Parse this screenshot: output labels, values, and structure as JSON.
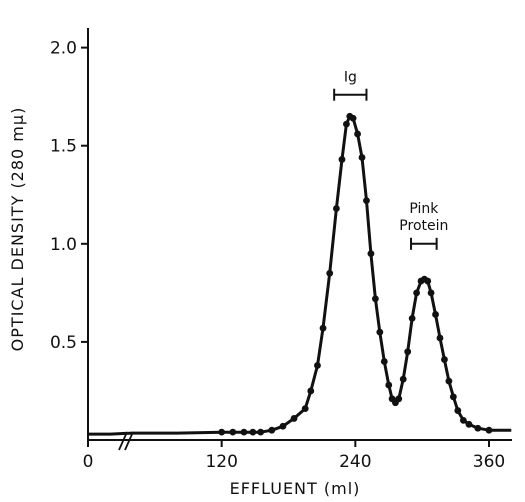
{
  "chart_data": {
    "type": "line",
    "title": "",
    "xlabel": "EFFLUENT (ml)",
    "ylabel": "OPTICAL DENSITY (280 mμ)",
    "xlim": [
      0,
      380
    ],
    "ylim": [
      0,
      2.1
    ],
    "x_ticks": [
      "0",
      "120",
      "240",
      "360"
    ],
    "y_ticks": [
      "0.5",
      "1.0",
      "1.5",
      "2.0"
    ],
    "axis_break": "x",
    "grid": false,
    "legend": "none",
    "series": [
      {
        "points": [
          [
            0,
            0.03
          ],
          [
            20,
            0.03
          ],
          [
            40,
            0.035
          ],
          [
            60,
            0.035
          ],
          [
            80,
            0.035
          ],
          [
            120,
            0.04
          ],
          [
            130,
            0.04
          ],
          [
            140,
            0.04
          ],
          [
            148,
            0.04
          ],
          [
            155,
            0.04
          ],
          [
            165,
            0.05
          ],
          [
            175,
            0.07
          ],
          [
            185,
            0.11
          ],
          [
            195,
            0.16
          ],
          [
            200,
            0.25
          ],
          [
            206,
            0.38
          ],
          [
            211,
            0.57
          ],
          [
            217,
            0.85
          ],
          [
            223,
            1.18
          ],
          [
            228,
            1.43
          ],
          [
            232,
            1.61
          ],
          [
            235,
            1.65
          ],
          [
            238,
            1.64
          ],
          [
            242,
            1.56
          ],
          [
            246,
            1.44
          ],
          [
            250,
            1.22
          ],
          [
            254,
            0.95
          ],
          [
            258,
            0.72
          ],
          [
            262,
            0.55
          ],
          [
            266,
            0.4
          ],
          [
            270,
            0.28
          ],
          [
            273,
            0.21
          ],
          [
            276,
            0.19
          ],
          [
            279,
            0.21
          ],
          [
            283,
            0.31
          ],
          [
            287,
            0.45
          ],
          [
            291,
            0.62
          ],
          [
            295,
            0.75
          ],
          [
            299,
            0.81
          ],
          [
            302,
            0.82
          ],
          [
            305,
            0.81
          ],
          [
            308,
            0.75
          ],
          [
            312,
            0.64
          ],
          [
            316,
            0.52
          ],
          [
            320,
            0.41
          ],
          [
            324,
            0.3
          ],
          [
            328,
            0.22
          ],
          [
            332,
            0.15
          ],
          [
            337,
            0.1
          ],
          [
            342,
            0.08
          ],
          [
            350,
            0.06
          ],
          [
            360,
            0.05
          ],
          [
            370,
            0.05
          ],
          [
            380,
            0.05
          ]
        ]
      }
    ],
    "annotations": [
      {
        "label": "Ig",
        "range": [
          221,
          250
        ],
        "y": 1.76
      },
      {
        "label_lines": [
          "Pink",
          "Protein"
        ],
        "range": [
          290,
          313
        ],
        "y": 1.0
      }
    ]
  }
}
